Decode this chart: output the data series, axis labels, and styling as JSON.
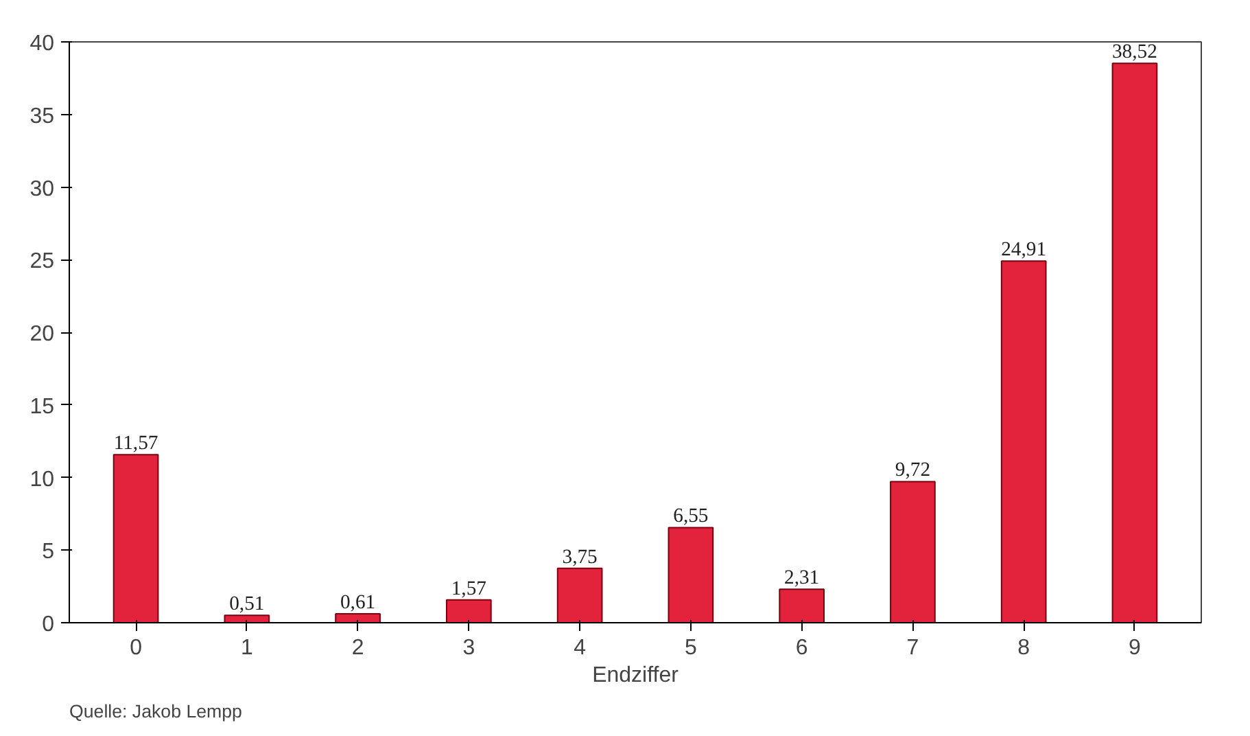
{
  "chart_data": {
    "type": "bar",
    "xlabel": "Endziffer",
    "categories": [
      "0",
      "1",
      "2",
      "3",
      "4",
      "5",
      "6",
      "7",
      "8",
      "9"
    ],
    "values": [
      11.57,
      0.51,
      0.61,
      1.57,
      3.75,
      6.55,
      2.31,
      9.72,
      24.91,
      38.52
    ],
    "value_labels": [
      "11,57",
      "0,51",
      "0,61",
      "1,57",
      "3,75",
      "6,55",
      "2,31",
      "9,72",
      "24,91",
      "38,52"
    ],
    "color": "#e3233c",
    "ylim": [
      0,
      40
    ],
    "yticks": [
      0,
      5,
      10,
      15,
      20,
      25,
      30,
      35,
      40
    ],
    "grid": false,
    "annotations": [
      "Quelle: Jakob Lempp"
    ]
  }
}
